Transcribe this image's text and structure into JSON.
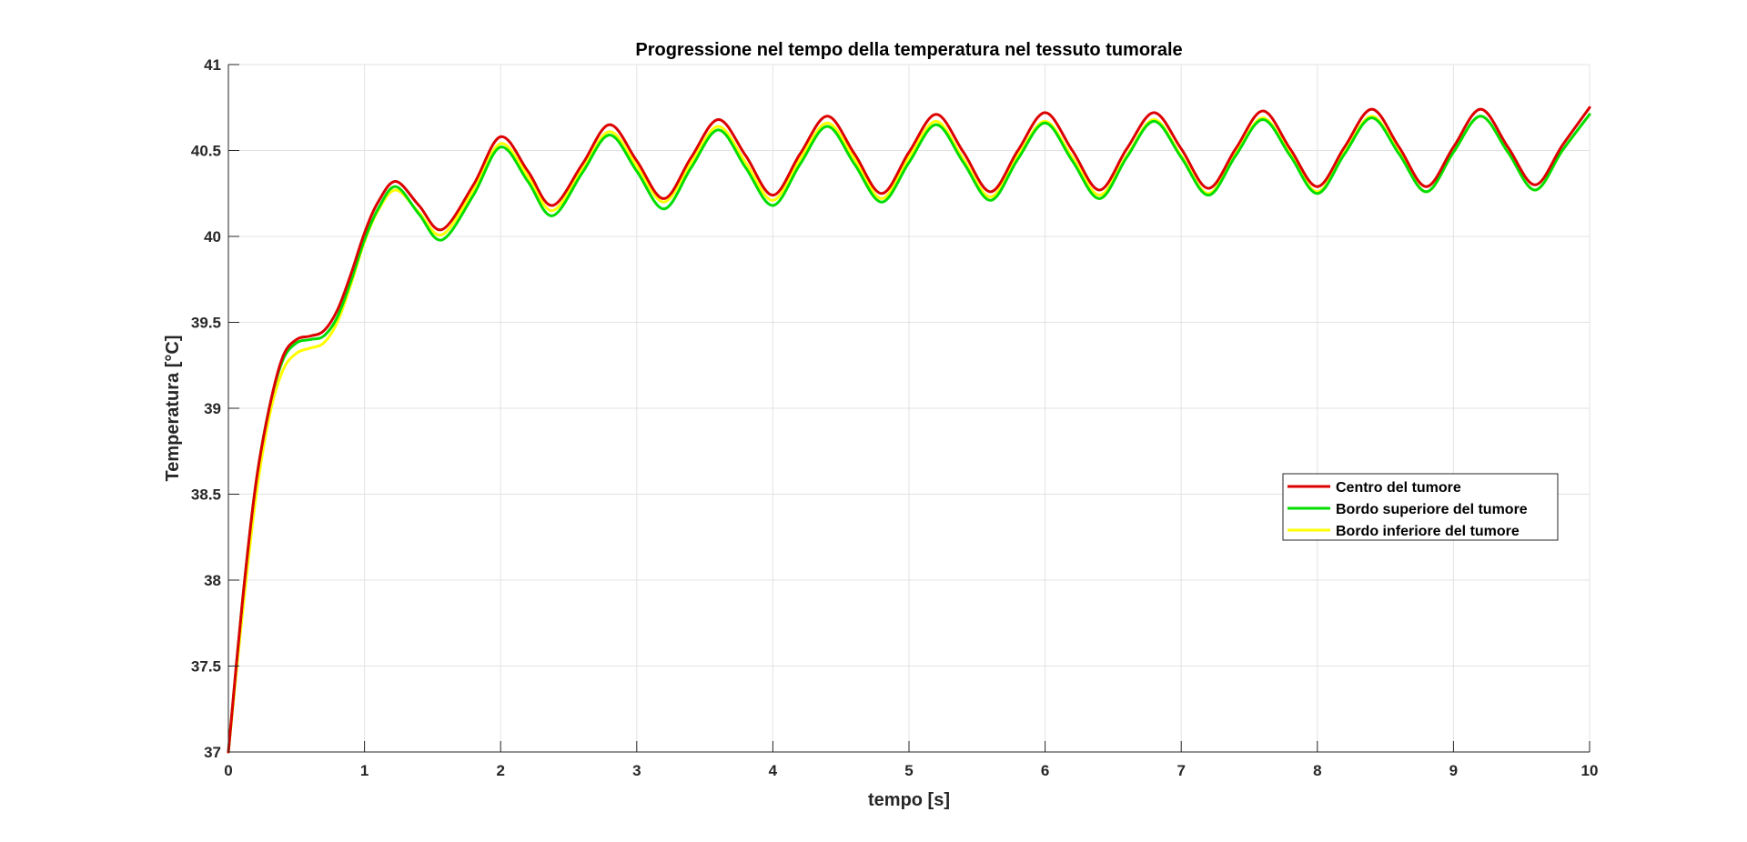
{
  "chart_data": {
    "type": "line",
    "title": "Progressione nel tempo della temperatura nel tessuto tumorale",
    "xlabel": "tempo [s]",
    "ylabel": "Temperatura [°C]",
    "xlim": [
      0,
      10
    ],
    "ylim": [
      37,
      41
    ],
    "xticks": [
      0,
      1,
      2,
      3,
      4,
      5,
      6,
      7,
      8,
      9,
      10
    ],
    "yticks": [
      37,
      37.5,
      38,
      38.5,
      39,
      39.5,
      40,
      40.5,
      41
    ],
    "xtick_labels": [
      "0",
      "1",
      "2",
      "3",
      "4",
      "5",
      "6",
      "7",
      "8",
      "9",
      "10"
    ],
    "ytick_labels": [
      "37",
      "37.5",
      "38",
      "38.5",
      "39",
      "39.5",
      "40",
      "40.5",
      "41"
    ],
    "grid": true,
    "legend_position": "right",
    "series": [
      {
        "name": "Centro del tumore",
        "color": "#dd0000",
        "x": [
          0,
          0.1,
          0.2,
          0.3,
          0.4,
          0.5,
          0.6,
          0.7,
          0.8,
          0.9,
          1.0,
          1.1,
          1.23,
          1.4,
          1.57,
          1.8,
          2.0,
          2.2,
          2.38,
          2.6,
          2.8,
          3.0,
          3.2,
          3.4,
          3.6,
          3.8,
          4.0,
          4.2,
          4.4,
          4.6,
          4.8,
          5.0,
          5.2,
          5.4,
          5.6,
          5.8,
          6.0,
          6.2,
          6.4,
          6.6,
          6.8,
          7.0,
          7.2,
          7.4,
          7.6,
          7.8,
          8.0,
          8.2,
          8.4,
          8.6,
          8.8,
          9.0,
          9.2,
          9.4,
          9.6,
          9.8,
          10.0
        ],
        "y": [
          37.0,
          37.85,
          38.55,
          39.0,
          39.3,
          39.4,
          39.42,
          39.45,
          39.57,
          39.78,
          40.02,
          40.2,
          40.32,
          40.18,
          40.04,
          40.3,
          40.58,
          40.38,
          40.18,
          40.42,
          40.65,
          40.44,
          40.22,
          40.46,
          40.68,
          40.47,
          40.24,
          40.48,
          40.7,
          40.48,
          40.25,
          40.49,
          40.71,
          40.49,
          40.26,
          40.5,
          40.72,
          40.5,
          40.27,
          40.51,
          40.72,
          40.51,
          40.28,
          40.51,
          40.73,
          40.51,
          40.29,
          40.52,
          40.74,
          40.52,
          40.29,
          40.52,
          40.74,
          40.52,
          40.3,
          40.53,
          40.75
        ]
      },
      {
        "name": "Bordo superiore del tumore",
        "color": "#00dd00",
        "x": [
          0,
          0.1,
          0.2,
          0.3,
          0.4,
          0.5,
          0.6,
          0.7,
          0.8,
          0.9,
          1.0,
          1.1,
          1.23,
          1.4,
          1.57,
          1.8,
          2.0,
          2.2,
          2.38,
          2.6,
          2.8,
          3.0,
          3.2,
          3.4,
          3.6,
          3.8,
          4.0,
          4.2,
          4.4,
          4.6,
          4.8,
          5.0,
          5.2,
          5.4,
          5.6,
          5.8,
          6.0,
          6.2,
          6.4,
          6.6,
          6.8,
          7.0,
          7.2,
          7.4,
          7.6,
          7.8,
          8.0,
          8.2,
          8.4,
          8.6,
          8.8,
          9.0,
          9.2,
          9.4,
          9.6,
          9.8,
          10.0
        ],
        "y": [
          37.0,
          37.85,
          38.55,
          39.0,
          39.28,
          39.38,
          39.4,
          39.42,
          39.53,
          39.74,
          39.98,
          40.16,
          40.29,
          40.13,
          39.98,
          40.24,
          40.52,
          40.32,
          40.12,
          40.37,
          40.59,
          40.38,
          40.16,
          40.4,
          40.62,
          40.4,
          40.18,
          40.42,
          40.64,
          40.42,
          40.2,
          40.43,
          40.65,
          40.43,
          40.21,
          40.45,
          40.66,
          40.44,
          40.22,
          40.46,
          40.67,
          40.46,
          40.24,
          40.47,
          40.68,
          40.47,
          40.25,
          40.48,
          40.69,
          40.48,
          40.26,
          40.49,
          40.7,
          40.49,
          40.27,
          40.5,
          40.71
        ]
      },
      {
        "name": "Bordo inferiore del tumore",
        "color": "#ffff00",
        "x": [
          0,
          0.1,
          0.2,
          0.3,
          0.4,
          0.5,
          0.6,
          0.7,
          0.8,
          0.9,
          1.0,
          1.1,
          1.23,
          1.4,
          1.57,
          1.8,
          2.0,
          2.2,
          2.38,
          2.6,
          2.8,
          3.0,
          3.2,
          3.4,
          3.6,
          3.8,
          4.0,
          4.2,
          4.4,
          4.6,
          4.8,
          5.0,
          5.2,
          5.4,
          5.6,
          5.8,
          6.0,
          6.2,
          6.4,
          6.6,
          6.8,
          7.0,
          7.2,
          7.4,
          7.6,
          7.8,
          8.0,
          8.2,
          8.4,
          8.6,
          8.8,
          9.0,
          9.2,
          9.4,
          9.6,
          9.8,
          10.0
        ],
        "y": [
          37.0,
          37.78,
          38.47,
          38.95,
          39.22,
          39.32,
          39.35,
          39.38,
          39.5,
          39.72,
          39.97,
          40.15,
          40.27,
          40.14,
          40.01,
          40.27,
          40.54,
          40.35,
          40.15,
          40.39,
          40.61,
          40.41,
          40.2,
          40.43,
          40.64,
          40.43,
          40.21,
          40.45,
          40.66,
          40.45,
          40.22,
          40.46,
          40.67,
          40.45,
          40.23,
          40.47,
          40.67,
          40.46,
          40.24,
          40.47,
          40.68,
          40.47,
          40.25,
          40.48,
          40.69,
          40.48,
          40.26,
          40.49,
          40.7,
          40.49,
          40.26,
          40.49,
          40.7,
          40.49,
          40.27,
          40.5,
          40.71
        ]
      }
    ]
  }
}
